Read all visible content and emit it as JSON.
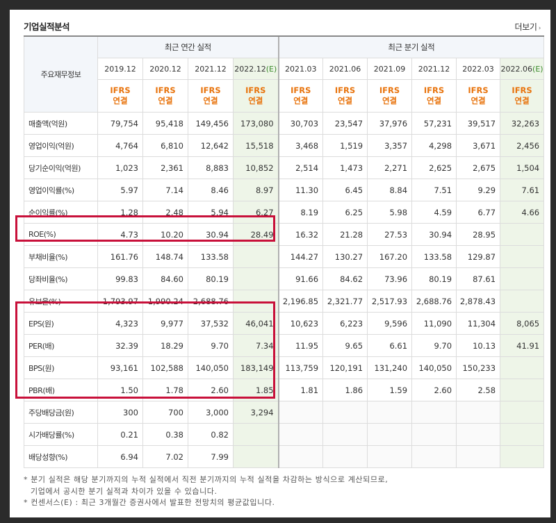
{
  "section_title": "기업실적분석",
  "more_link": "더보기",
  "header": {
    "row_head": "주요재무정보",
    "annual_title": "최근 연간 실적",
    "quarter_title": "최근 분기 실적",
    "annual_periods": [
      "2019.12",
      "2020.12",
      "2021.12",
      "2022.12"
    ],
    "annual_estimate_mark": "(E)",
    "quarter_periods": [
      "2021.03",
      "2021.06",
      "2021.09",
      "2021.12",
      "2022.03",
      "2022.06"
    ],
    "quarter_estimate_mark": "(E)",
    "ifrs_line1": "IFRS",
    "ifrs_line2": "연결"
  },
  "rows": [
    {
      "label": "매출액(억원)",
      "annual": [
        "79,754",
        "95,418",
        "149,456",
        "173,080"
      ],
      "quarter": [
        "30,703",
        "23,547",
        "37,976",
        "57,231",
        "39,517",
        "32,263"
      ]
    },
    {
      "label": "영업이익(억원)",
      "annual": [
        "4,764",
        "6,810",
        "12,642",
        "15,518"
      ],
      "quarter": [
        "3,468",
        "1,519",
        "3,357",
        "4,298",
        "3,671",
        "2,456"
      ]
    },
    {
      "label": "당기순이익(억원)",
      "annual": [
        "1,023",
        "2,361",
        "8,883",
        "10,852"
      ],
      "quarter": [
        "2,514",
        "1,473",
        "2,271",
        "2,625",
        "2,675",
        "1,504"
      ]
    },
    {
      "label": "영업이익률(%)",
      "annual": [
        "5.97",
        "7.14",
        "8.46",
        "8.97"
      ],
      "quarter": [
        "11.30",
        "6.45",
        "8.84",
        "7.51",
        "9.29",
        "7.61"
      ]
    },
    {
      "label": "순이익률(%)",
      "annual": [
        "1.28",
        "2.48",
        "5.94",
        "6.27"
      ],
      "quarter": [
        "8.19",
        "6.25",
        "5.98",
        "4.59",
        "6.77",
        "4.66"
      ]
    },
    {
      "label": "ROE(%)",
      "annual": [
        "4.73",
        "10.20",
        "30.94",
        "28.49"
      ],
      "quarter": [
        "16.32",
        "21.28",
        "27.53",
        "30.94",
        "28.95",
        ""
      ]
    },
    {
      "label": "부채비율(%)",
      "annual": [
        "161.76",
        "148.74",
        "133.58",
        ""
      ],
      "quarter": [
        "144.27",
        "130.27",
        "167.20",
        "133.58",
        "129.87",
        ""
      ]
    },
    {
      "label": "당좌비율(%)",
      "annual": [
        "99.83",
        "84.60",
        "80.19",
        ""
      ],
      "quarter": [
        "91.66",
        "84.62",
        "73.96",
        "80.19",
        "87.61",
        ""
      ]
    },
    {
      "label": "유보율(%)",
      "annual": [
        "1,793.97",
        "1,990.24",
        "2,688.76",
        ""
      ],
      "quarter": [
        "2,196.85",
        "2,321.77",
        "2,517.93",
        "2,688.76",
        "2,878.43",
        ""
      ]
    },
    {
      "label": "EPS(원)",
      "annual": [
        "4,323",
        "9,977",
        "37,532",
        "46,041"
      ],
      "quarter": [
        "10,623",
        "6,223",
        "9,596",
        "11,090",
        "11,304",
        "8,065"
      ]
    },
    {
      "label": "PER(배)",
      "annual": [
        "32.39",
        "18.29",
        "9.70",
        "7.34"
      ],
      "quarter": [
        "11.95",
        "9.65",
        "6.61",
        "9.70",
        "10.13",
        "41.91"
      ]
    },
    {
      "label": "BPS(원)",
      "annual": [
        "93,161",
        "102,588",
        "140,050",
        "183,149"
      ],
      "quarter": [
        "113,759",
        "120,191",
        "131,240",
        "140,050",
        "150,233",
        ""
      ]
    },
    {
      "label": "PBR(배)",
      "annual": [
        "1.50",
        "1.78",
        "2.60",
        "1.85"
      ],
      "quarter": [
        "1.81",
        "1.86",
        "1.59",
        "2.60",
        "2.58",
        ""
      ]
    },
    {
      "label": "주당배당금(원)",
      "annual": [
        "300",
        "700",
        "3,000",
        "3,294"
      ],
      "quarter": [
        "",
        "",
        "",
        "",
        "",
        ""
      ]
    },
    {
      "label": "시가배당률(%)",
      "annual": [
        "0.21",
        "0.38",
        "0.82",
        ""
      ],
      "quarter": [
        "",
        "",
        "",
        "",
        "",
        ""
      ]
    },
    {
      "label": "배당성향(%)",
      "annual": [
        "6.94",
        "7.02",
        "7.99",
        ""
      ],
      "quarter": [
        "",
        "",
        "",
        "",
        "",
        ""
      ]
    }
  ],
  "notes": {
    "line1": "* 분기 실적은 해당 분기까지의 누적 실적에서 직전 분기까지의 누적 실적을 차감하는 방식으로 계산되므로,",
    "line2": "기업에서 공시한 분기 실적과 차이가 있을 수 있습니다.",
    "line3": "* 컨센서스(E) : 최근 3개월간 증권사에서 발표한 전망치의 평균값입니다."
  },
  "colors": {
    "highlight_box": "#c8103a",
    "ifrs_text": "#e8730c",
    "estimate_bg": "#eef5e8",
    "estimate_mark": "#3a8a2a"
  }
}
